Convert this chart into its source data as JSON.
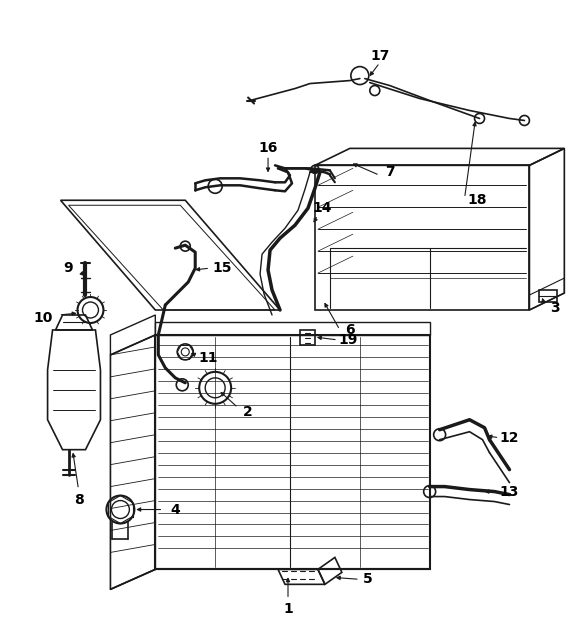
{
  "bg_color": "#ffffff",
  "line_color": "#1a1a1a",
  "label_color": "#000000",
  "figsize": [
    5.76,
    6.26
  ],
  "dpi": 100,
  "label_fontsize": 10,
  "lw": 1.0
}
